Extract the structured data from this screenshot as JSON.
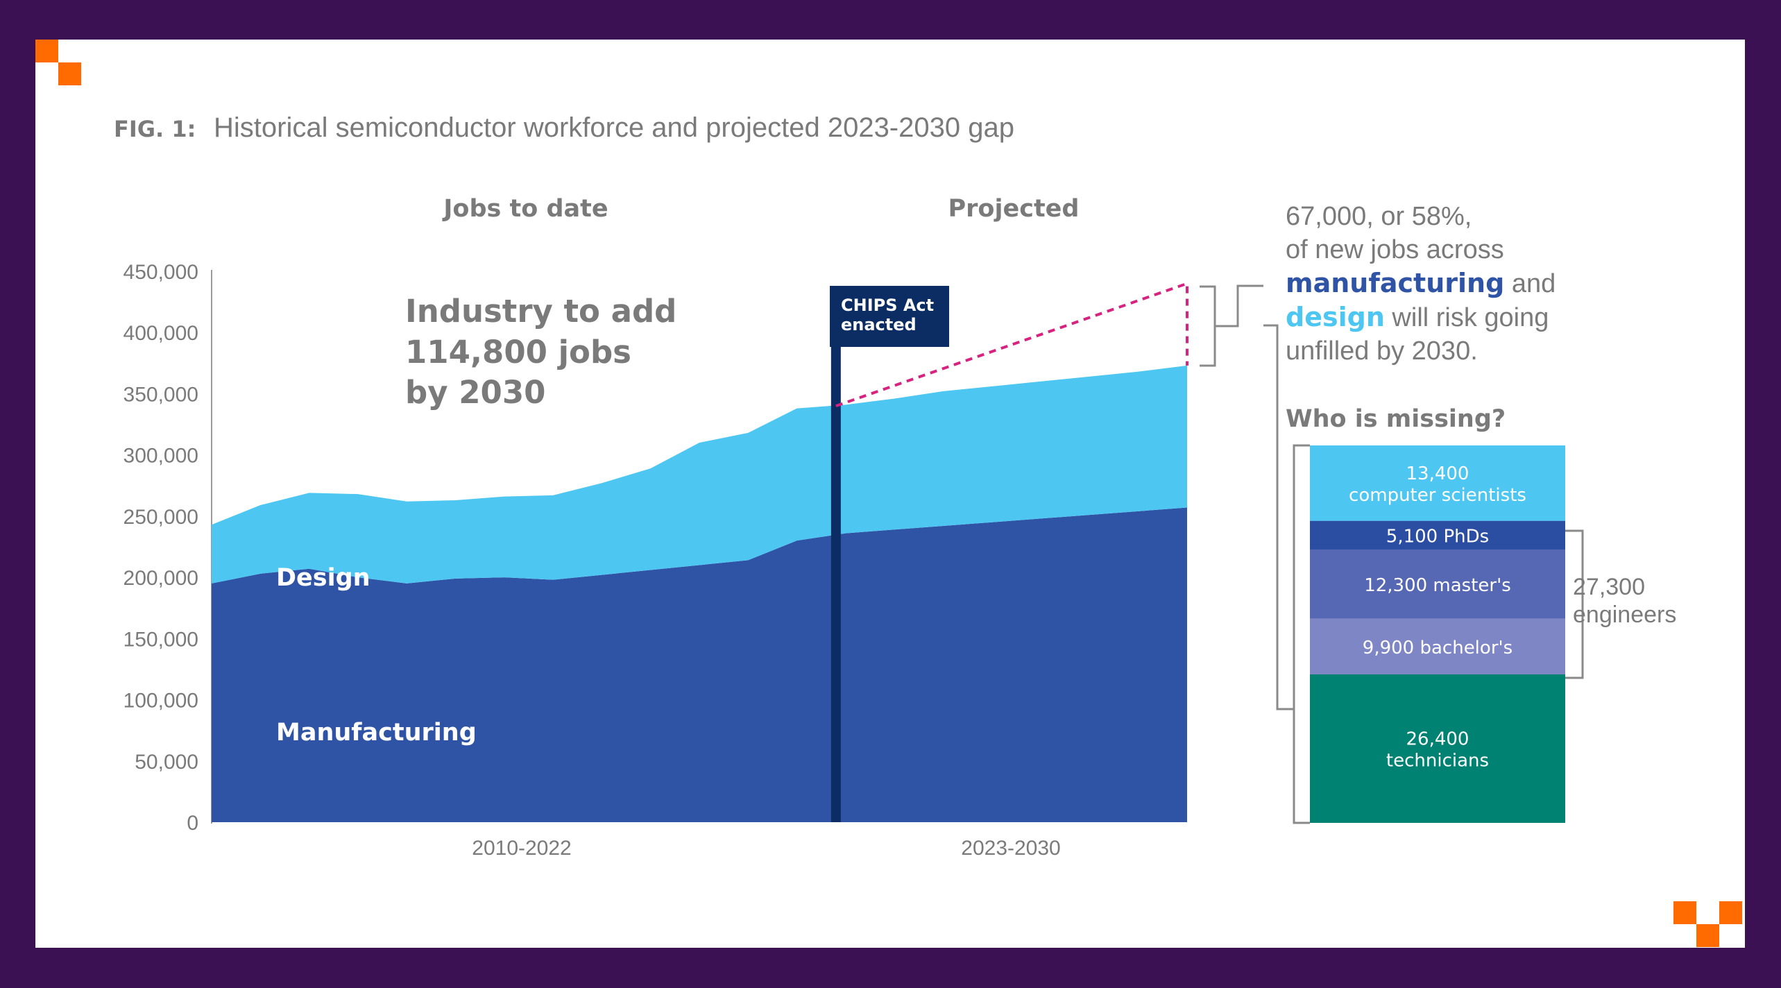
{
  "figure": {
    "label": "FIG. 1:",
    "title": "Historical semiconductor workforce and projected 2023-2030 gap"
  },
  "section_headers": {
    "left": "Jobs to date",
    "right": "Projected"
  },
  "callout": {
    "lines": [
      "Industry to add",
      "114,800 jobs",
      "by 2030"
    ]
  },
  "marker": {
    "lines": [
      "CHIPS Act",
      "enacted"
    ]
  },
  "gap_note": {
    "line1": "67,000, or 58%,",
    "line2": "of new jobs across",
    "line3_strong": "manufacturing",
    "line3_rest": " and",
    "line4_strong": "design",
    "line4_rest": " will risk going",
    "line5": "unfilled by 2030."
  },
  "missing": {
    "title": "Who is missing?",
    "engineers_label": [
      "27,300",
      "engineers"
    ]
  },
  "colors": {
    "manufacturing": "#2f54a5",
    "design": "#4dc6f2",
    "marker": "#0b2d63",
    "gap_line": "#d6237f",
    "text_gray": "#7a7a7a",
    "accent_orange": "#ff6b00",
    "frame_purple": "#3b1154"
  },
  "chart_data": [
    {
      "type": "area",
      "stacked": true,
      "x_labels": [
        "2010-2022",
        "2023-2030"
      ],
      "ylim": [
        0,
        450000
      ],
      "yticks": [
        "0",
        "50,000",
        "100,000",
        "150,000",
        "200,000",
        "250,000",
        "300,000",
        "350,000",
        "400,000",
        "450,000"
      ],
      "ytick_values": [
        0,
        50000,
        100000,
        150000,
        200000,
        250000,
        300000,
        350000,
        400000,
        450000
      ],
      "x": [
        2010,
        2011,
        2012,
        2013,
        2014,
        2015,
        2016,
        2017,
        2018,
        2019,
        2020,
        2021,
        2022,
        2023,
        2024,
        2025,
        2026,
        2027,
        2028,
        2029,
        2030
      ],
      "xlim": [
        2010,
        2030
      ],
      "marker_x": 2022.8,
      "series": [
        {
          "name": "Manufacturing",
          "values": [
            195000,
            203000,
            207000,
            200000,
            195000,
            199000,
            200000,
            198000,
            202000,
            206000,
            210000,
            214000,
            230000,
            236000,
            239000,
            242000,
            245000,
            248000,
            251000,
            254000,
            257000
          ]
        },
        {
          "name": "Design",
          "values": [
            48000,
            56000,
            62000,
            68000,
            67000,
            64000,
            66000,
            69000,
            75000,
            83000,
            100000,
            104000,
            108000,
            105000,
            107000,
            110000,
            111000,
            112000,
            113000,
            114000,
            116000
          ]
        }
      ],
      "gap_line": {
        "x": [
          2022.8,
          2030
        ],
        "y": [
          340000,
          440000
        ]
      },
      "series_labels": [
        "Design",
        "Manufacturing"
      ]
    },
    {
      "type": "bar",
      "stacked": true,
      "title": "Who is missing?",
      "categories": [
        "26,400 technicians",
        "9,900 bachelor's",
        "12,300 master's",
        "5,100 PhDs",
        "13,400 computer scientists"
      ],
      "segments": [
        {
          "value": 26400,
          "lines": [
            "26,400",
            "technicians"
          ],
          "color": "#008272"
        },
        {
          "value": 9900,
          "lines": [
            "9,900 bachelor's"
          ],
          "color": "#7f86c6"
        },
        {
          "value": 12300,
          "lines": [
            "12,300 master's"
          ],
          "color": "#5667b3"
        },
        {
          "value": 5100,
          "lines": [
            "5,100 PhDs"
          ],
          "color": "#2b4ea3"
        },
        {
          "value": 13400,
          "lines": [
            "13,400",
            "computer scientists"
          ],
          "color": "#4dc6f2"
        }
      ],
      "total": 67100
    }
  ]
}
